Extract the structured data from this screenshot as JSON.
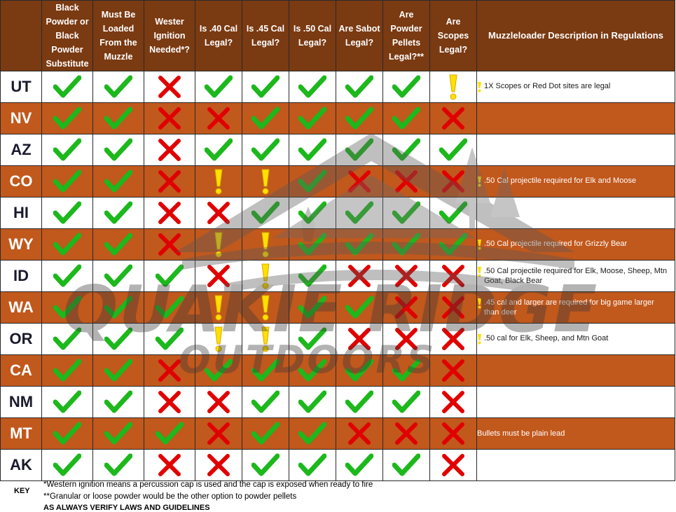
{
  "headers": [
    "",
    "Black Powder or Black Powder Substitute",
    "Must Be Loaded From the Muzzle",
    "Wester Ignition Needed*?",
    "Is .40 Cal Legal?",
    "Is .45 Cal Legal?",
    "Is .50 Cal Legal?",
    "Are Sabot Legal?",
    "Are Powder Pellets Legal?**",
    "Are Scopes Legal?",
    "Muzzleloader Description in Regulations"
  ],
  "rows": [
    {
      "state": "UT",
      "marks": [
        "check",
        "check",
        "x",
        "check",
        "check",
        "check",
        "check",
        "check",
        "warn"
      ],
      "desc_icon": "warn",
      "desc": "1X Scopes or Red Dot sites are legal"
    },
    {
      "state": "NV",
      "marks": [
        "check",
        "check",
        "x",
        "x",
        "check",
        "check",
        "check",
        "check",
        "x"
      ],
      "desc_icon": "",
      "desc": ""
    },
    {
      "state": "AZ",
      "marks": [
        "check",
        "check",
        "x",
        "check",
        "check",
        "check",
        "check",
        "check",
        "check"
      ],
      "desc_icon": "",
      "desc": ""
    },
    {
      "state": "CO",
      "marks": [
        "check",
        "check",
        "x",
        "warn",
        "warn",
        "check",
        "x",
        "x",
        "x"
      ],
      "desc_icon": "warn",
      "desc": ".50 Cal projectile required for Elk and Moose"
    },
    {
      "state": "HI",
      "marks": [
        "check",
        "check",
        "x",
        "x",
        "check",
        "check",
        "check",
        "check",
        "check"
      ],
      "desc_icon": "",
      "desc": ""
    },
    {
      "state": "WY",
      "marks": [
        "check",
        "check",
        "x",
        "warn",
        "warn",
        "check",
        "check",
        "check",
        "check"
      ],
      "desc_icon": "warn",
      "desc": ".50 Cal projectile required for Grizzly Bear"
    },
    {
      "state": "ID",
      "marks": [
        "check",
        "check",
        "check",
        "x",
        "warn",
        "check",
        "x",
        "x",
        "x"
      ],
      "desc_icon": "warn",
      "desc": ".50 Cal projectile required for Elk, Moose, Sheep, Mtn Goat, Black Bear"
    },
    {
      "state": "WA",
      "marks": [
        "check",
        "check",
        "check",
        "warn",
        "warn",
        "check",
        "check",
        "x",
        "x"
      ],
      "desc_icon": "warn",
      "desc": ".45 cal and larger are required for big game larger than deer"
    },
    {
      "state": "OR",
      "marks": [
        "check",
        "check",
        "check",
        "warn",
        "warn",
        "check",
        "x",
        "x",
        "x"
      ],
      "desc_icon": "warn",
      "desc": ".50 cal for Elk, Sheep, and Mtn Goat"
    },
    {
      "state": "CA",
      "marks": [
        "check",
        "check",
        "x",
        "check",
        "check",
        "check",
        "check",
        "check",
        "x"
      ],
      "desc_icon": "",
      "desc": ""
    },
    {
      "state": "NM",
      "marks": [
        "check",
        "check",
        "x",
        "x",
        "check",
        "check",
        "check",
        "check",
        "x"
      ],
      "desc_icon": "",
      "desc": ""
    },
    {
      "state": "MT",
      "marks": [
        "check",
        "check",
        "check",
        "x",
        "check",
        "check",
        "x",
        "x",
        "x"
      ],
      "desc_icon": "",
      "desc": "Bullets must be plain lead"
    },
    {
      "state": "AK",
      "marks": [
        "check",
        "check",
        "x",
        "x",
        "check",
        "check",
        "check",
        "check",
        "x"
      ],
      "desc_icon": "",
      "desc": ""
    }
  ],
  "watermark": {
    "line1": "QUAKIE RIDGE",
    "line2": "OUTDOORS"
  },
  "key": {
    "label": "KEY",
    "note1": "*Western ignition means a percussion cap is used and the cap is exposed when ready to fire",
    "note2": "**Granular or loose powder would be the other option to powder pellets",
    "note3": "AS ALWAYS VERIFY LAWS AND GUIDELINES"
  },
  "colors": {
    "header_bg": "#7a3a12",
    "row_alt_bg": "#c1581c",
    "check": "#1cb81c",
    "x": "#e00000",
    "warn": "#ffe000"
  },
  "icon_names": {
    "check": "check-icon",
    "x": "x-icon",
    "warn": "exclamation-icon"
  }
}
